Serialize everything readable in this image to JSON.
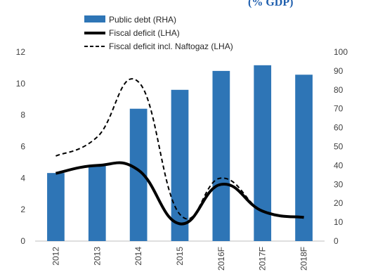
{
  "chart_data": {
    "type": "bar",
    "title_fragment": "(% GDP)",
    "categories": [
      "2012",
      "2013",
      "2014",
      "2015",
      "2016F",
      "2017F",
      "2018F"
    ],
    "left_axis": {
      "range": [
        0,
        12
      ],
      "ticks": [
        "0",
        "2",
        "4",
        "6",
        "8",
        "10",
        "12"
      ]
    },
    "right_axis": {
      "range": [
        0,
        100
      ],
      "ticks": [
        "0",
        "10",
        "20",
        "30",
        "40",
        "50",
        "60",
        "70",
        "80",
        "90",
        "100"
      ]
    },
    "series": [
      {
        "name": "Public debt (RHA)",
        "kind": "bar",
        "axis": "right",
        "color": "#2e75b6",
        "values": [
          36,
          40,
          70,
          80,
          90,
          93,
          88
        ]
      },
      {
        "name": "Fiscal deficit (LHA)",
        "kind": "line",
        "axis": "left",
        "color": "#000000",
        "style": "solid",
        "values": [
          4.3,
          4.8,
          4.5,
          1.1,
          3.6,
          1.9,
          1.5
        ]
      },
      {
        "name": "Fiscal deficit incl. Naftogaz (LHA)",
        "kind": "line",
        "axis": "left",
        "color": "#000000",
        "style": "dashed",
        "values": [
          5.4,
          6.6,
          10.1,
          1.7,
          4.0,
          1.9,
          1.5
        ]
      }
    ],
    "legend_position": "top",
    "grid": false
  }
}
